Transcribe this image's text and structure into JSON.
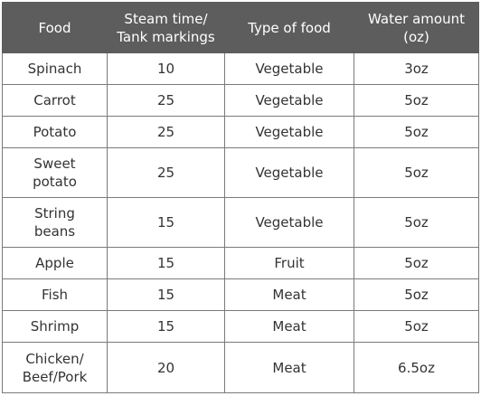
{
  "header": {
    "food": "Food",
    "steam_time_line1": "Steam time/",
    "steam_time_line2": "Tank markings",
    "type_of_food": "Type of food",
    "water_amount_line1": "Water amount",
    "water_amount_line2": "(oz)"
  },
  "rows": [
    {
      "food_line1": "Spinach",
      "food_line2": "",
      "steam_time": "10",
      "type": "Vegetable",
      "water": "3oz"
    },
    {
      "food_line1": "Carrot",
      "food_line2": "",
      "steam_time": "25",
      "type": "Vegetable",
      "water": "5oz"
    },
    {
      "food_line1": "Potato",
      "food_line2": "",
      "steam_time": "25",
      "type": "Vegetable",
      "water": "5oz"
    },
    {
      "food_line1": "Sweet",
      "food_line2": "potato",
      "steam_time": "25",
      "type": "Vegetable",
      "water": "5oz"
    },
    {
      "food_line1": "String",
      "food_line2": "beans",
      "steam_time": "15",
      "type": "Vegetable",
      "water": "5oz"
    },
    {
      "food_line1": "Apple",
      "food_line2": "",
      "steam_time": "15",
      "type": "Fruit",
      "water": "5oz"
    },
    {
      "food_line1": "Fish",
      "food_line2": "",
      "steam_time": "15",
      "type": "Meat",
      "water": "5oz"
    },
    {
      "food_line1": "Shrimp",
      "food_line2": "",
      "steam_time": "15",
      "type": "Meat",
      "water": "5oz"
    },
    {
      "food_line1": "Chicken/",
      "food_line2": "Beef/Pork",
      "steam_time": "20",
      "type": "Meat",
      "water": "6.5oz"
    }
  ]
}
